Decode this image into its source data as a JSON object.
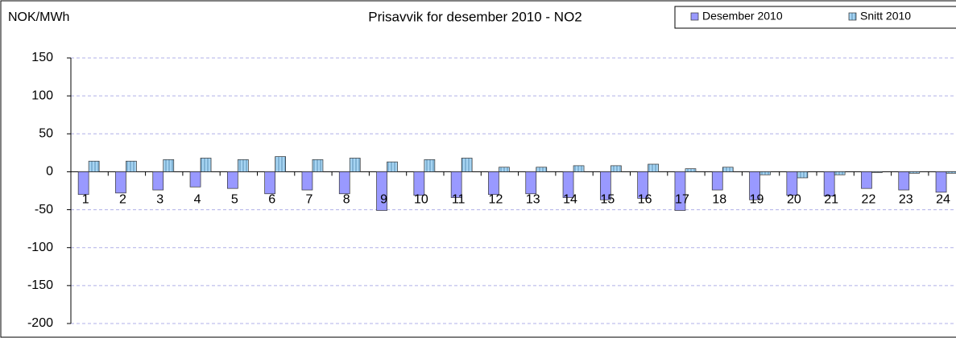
{
  "chart_data": {
    "type": "bar",
    "title": "Prisavvik for desember 2010 - NO2",
    "y_label": "NOK/MWh",
    "categories": [
      "1",
      "2",
      "3",
      "4",
      "5",
      "6",
      "7",
      "8",
      "9",
      "10",
      "11",
      "12",
      "13",
      "14",
      "15",
      "16",
      "17",
      "18",
      "19",
      "20",
      "21",
      "22",
      "23",
      "24"
    ],
    "series": [
      {
        "name": "Desember 2010",
        "color": "#9999ff",
        "values": [
          -30,
          -28,
          -24,
          -20,
          -22,
          -29,
          -24,
          -29,
          -51,
          -31,
          -34,
          -30,
          -29,
          -34,
          -37,
          -35,
          -51,
          -24,
          -37,
          -31,
          -32,
          -22,
          -24,
          -27
        ]
      },
      {
        "name": "Snitt 2010",
        "color": "#a6d4f2",
        "values": [
          14,
          14,
          16,
          18,
          16,
          20,
          16,
          18,
          13,
          16,
          18,
          6,
          6,
          8,
          8,
          10,
          4,
          6,
          -4,
          -8,
          -4,
          -1,
          -2,
          -2
        ]
      }
    ],
    "ylim": [
      -200,
      150
    ],
    "yticks": [
      -200,
      -150,
      -100,
      -50,
      0,
      50,
      100,
      150
    ],
    "grid": true,
    "legend": "top-right"
  }
}
